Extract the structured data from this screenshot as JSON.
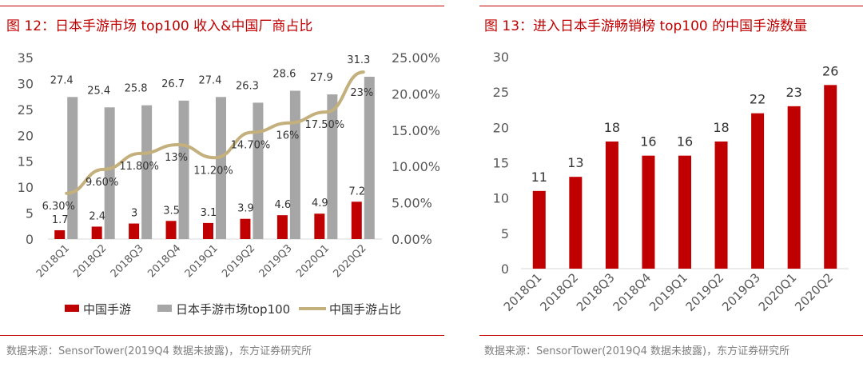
{
  "chart_data": [
    {
      "type": "bar",
      "title": "图 12：日本手游市场 top100 收入&中国厂商占比",
      "source": "数据来源：SensorTower(2019Q4 数据未披露)，东方证券研究所",
      "categories": [
        "2018Q1",
        "2018Q2",
        "2018Q3",
        "2018Q4",
        "2019Q1",
        "2019Q2",
        "2019Q3",
        "2020Q1",
        "2020Q2"
      ],
      "ylim": [
        0,
        35
      ],
      "yticks": [
        "0",
        "5",
        "10",
        "15",
        "20",
        "25",
        "30",
        "35"
      ],
      "y2lim": [
        0,
        25
      ],
      "y2ticks": [
        "0.00%",
        "5.00%",
        "10.00%",
        "15.00%",
        "20.00%",
        "25.00%"
      ],
      "series": [
        {
          "name": "中国手游",
          "type": "bar",
          "color": "#c00000",
          "values": [
            1.7,
            2.4,
            3,
            3.5,
            3.1,
            3.9,
            4.6,
            4.9,
            7.2
          ],
          "labels": [
            "1.7",
            "2.4",
            "3",
            "3.5",
            "3.1",
            "3.9",
            "4.6",
            "4.9",
            "7.2"
          ]
        },
        {
          "name": "日本手游市场top100",
          "type": "bar",
          "color": "#a6a6a6",
          "values": [
            27.4,
            25.4,
            25.8,
            26.7,
            27.4,
            26.3,
            28.6,
            27.9,
            31.3
          ],
          "labels": [
            "27.4",
            "25.4",
            "25.8",
            "26.7",
            "27.4",
            "26.3",
            "28.6",
            "27.9",
            "31.3"
          ]
        },
        {
          "name": "中国手游占比",
          "type": "line",
          "axis": "secondary",
          "color": "#c4b07c",
          "values": [
            6.3,
            9.6,
            11.8,
            13,
            11.2,
            14.7,
            16,
            17.5,
            23
          ],
          "labels": [
            "6.30%",
            "9.60%",
            "11.80%",
            "13%",
            "11.20%",
            "14.70%",
            "16%",
            "17.50%",
            "23%"
          ]
        }
      ],
      "legend": "bottom"
    },
    {
      "type": "bar",
      "title": "图 13：进入日本手游畅销榜 top100 的中国手游数量",
      "source": "数据来源：SensorTower(2019Q4 数据未披露)，东方证券研究所",
      "categories": [
        "2018Q1",
        "2018Q2",
        "2018Q3",
        "2018Q4",
        "2019Q1",
        "2019Q2",
        "2019Q3",
        "2020Q1",
        "2020Q2"
      ],
      "values": [
        11,
        13,
        18,
        16,
        16,
        18,
        22,
        23,
        26
      ],
      "labels": [
        "11",
        "13",
        "18",
        "16",
        "16",
        "18",
        "22",
        "23",
        "26"
      ],
      "color": "#c00000",
      "ylim": [
        0,
        30
      ],
      "yticks": [
        "0",
        "5",
        "10",
        "15",
        "20",
        "25",
        "30"
      ]
    }
  ]
}
